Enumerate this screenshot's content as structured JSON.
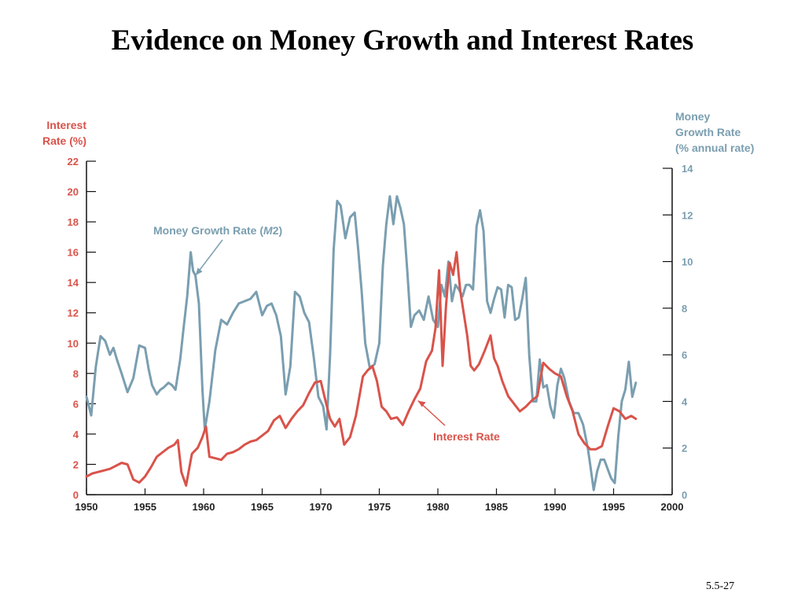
{
  "slide": {
    "title": "Evidence on Money Growth and Interest Rates",
    "number": "5.5-27"
  },
  "chart_data": {
    "type": "line",
    "title": "",
    "xlabel": "",
    "x_ticks": [
      "1950",
      "1955",
      "1960",
      "1965",
      "1970",
      "1975",
      "1980",
      "1985",
      "1990",
      "1995",
      "2000"
    ],
    "xlim": [
      1950,
      2000
    ],
    "left_axis": {
      "label_lines": [
        "Interest",
        "Rate (%)"
      ],
      "ylim": [
        0,
        22
      ],
      "ticks": [
        "0",
        "2",
        "4",
        "6",
        "8",
        "10",
        "12",
        "14",
        "16",
        "18",
        "20",
        "22"
      ],
      "color": "#d9534a"
    },
    "right_axis": {
      "label_lines": [
        "Money",
        "Growth Rate",
        "(% annual rate)"
      ],
      "ylim": [
        0,
        14
      ],
      "ticks": [
        "0",
        "2",
        "4",
        "6",
        "8",
        "10",
        "12",
        "14"
      ],
      "color": "#7a9eb0"
    },
    "grid": false,
    "legend": "inline annotations with arrows",
    "series": [
      {
        "name": "Money Growth Rate (M2)",
        "label_parts": [
          "Money Growth Rate (",
          "M",
          "2)"
        ],
        "axis": "right",
        "color": "#7a9eb0",
        "x": [
          1950.0,
          1950.4,
          1950.8,
          1951.2,
          1951.6,
          1952.0,
          1952.3,
          1952.6,
          1953.0,
          1953.5,
          1954.0,
          1954.5,
          1955.0,
          1955.3,
          1955.6,
          1956.0,
          1956.3,
          1956.6,
          1957.0,
          1957.3,
          1957.6,
          1958.0,
          1958.3,
          1958.6,
          1958.9,
          1959.1,
          1959.3,
          1959.6,
          1959.9,
          1960.1,
          1960.5,
          1961.0,
          1961.5,
          1962.0,
          1962.5,
          1963.0,
          1963.5,
          1964.0,
          1964.5,
          1965.0,
          1965.4,
          1965.8,
          1966.2,
          1966.6,
          1967.0,
          1967.4,
          1967.8,
          1968.2,
          1968.6,
          1969.0,
          1969.4,
          1969.8,
          1970.2,
          1970.5,
          1970.8,
          1971.1,
          1971.4,
          1971.7,
          1972.1,
          1972.5,
          1972.9,
          1973.2,
          1973.5,
          1973.8,
          1974.2,
          1974.6,
          1975.0,
          1975.3,
          1975.6,
          1975.9,
          1976.2,
          1976.5,
          1976.8,
          1977.1,
          1977.4,
          1977.7,
          1978.0,
          1978.4,
          1978.8,
          1979.2,
          1979.6,
          1980.0,
          1980.3,
          1980.6,
          1980.9,
          1981.2,
          1981.5,
          1981.8,
          1982.1,
          1982.4,
          1982.7,
          1983.0,
          1983.3,
          1983.6,
          1983.9,
          1984.2,
          1984.5,
          1984.8,
          1985.1,
          1985.4,
          1985.7,
          1986.0,
          1986.3,
          1986.6,
          1986.9,
          1987.2,
          1987.5,
          1987.8,
          1988.1,
          1988.4,
          1988.7,
          1989.0,
          1989.3,
          1989.6,
          1989.9,
          1990.2,
          1990.5,
          1990.8,
          1991.2,
          1991.6,
          1992.0,
          1992.4,
          1992.8,
          1993.0,
          1993.3,
          1993.6,
          1993.9,
          1994.2,
          1994.5,
          1994.8,
          1995.1,
          1995.4,
          1995.7,
          1996.0,
          1996.3,
          1996.6,
          1996.9
        ],
        "values": [
          4.2,
          3.4,
          5.5,
          6.8,
          6.6,
          6.0,
          6.3,
          5.8,
          5.2,
          4.4,
          5.0,
          6.4,
          6.3,
          5.4,
          4.7,
          4.3,
          4.5,
          4.6,
          4.8,
          4.7,
          4.5,
          5.8,
          7.2,
          8.5,
          10.4,
          9.6,
          9.4,
          8.2,
          4.5,
          2.8,
          4.0,
          6.2,
          7.5,
          7.3,
          7.8,
          8.2,
          8.3,
          8.4,
          8.7,
          7.7,
          8.1,
          8.2,
          7.7,
          6.8,
          4.3,
          5.5,
          8.7,
          8.5,
          7.8,
          7.4,
          5.9,
          4.2,
          3.8,
          2.8,
          6.0,
          10.5,
          12.6,
          12.4,
          11.0,
          11.9,
          12.1,
          10.5,
          8.7,
          6.5,
          5.4,
          5.6,
          6.5,
          9.8,
          11.6,
          12.8,
          11.6,
          12.8,
          12.3,
          11.6,
          9.5,
          7.2,
          7.7,
          7.9,
          7.5,
          8.5,
          7.5,
          7.2,
          9.0,
          8.5,
          10.0,
          8.3,
          9.0,
          8.8,
          8.5,
          9.0,
          9.0,
          8.8,
          11.5,
          12.2,
          11.3,
          8.3,
          7.8,
          8.4,
          8.9,
          8.8,
          7.6,
          9.0,
          8.9,
          7.5,
          7.6,
          8.4,
          9.3,
          6.0,
          4.0,
          4.0,
          5.8,
          4.6,
          4.7,
          3.8,
          3.3,
          4.7,
          5.4,
          5.0,
          4.0,
          3.5,
          3.5,
          3.0,
          2.0,
          1.3,
          0.2,
          1.0,
          1.5,
          1.5,
          1.1,
          0.7,
          0.5,
          2.5,
          4.0,
          4.5,
          5.7,
          4.2,
          4.8
        ],
        "annotation_points_to": [
          1959.3,
          9.4
        ]
      },
      {
        "name": "Interest Rate",
        "axis": "left",
        "color": "#d9534a",
        "x": [
          1950.0,
          1950.5,
          1951.0,
          1951.5,
          1952.0,
          1952.5,
          1953.0,
          1953.5,
          1954.0,
          1954.5,
          1955.0,
          1955.5,
          1956.0,
          1956.5,
          1957.0,
          1957.5,
          1957.8,
          1958.1,
          1958.5,
          1959.0,
          1959.5,
          1959.9,
          1960.2,
          1960.5,
          1961.0,
          1961.5,
          1962.0,
          1962.5,
          1963.0,
          1963.5,
          1964.0,
          1964.5,
          1965.0,
          1965.5,
          1966.0,
          1966.5,
          1967.0,
          1967.5,
          1968.0,
          1968.5,
          1969.0,
          1969.5,
          1970.0,
          1970.4,
          1970.8,
          1971.2,
          1971.6,
          1972.0,
          1972.5,
          1973.0,
          1973.3,
          1973.6,
          1974.0,
          1974.4,
          1974.8,
          1975.2,
          1975.6,
          1976.0,
          1976.5,
          1977.0,
          1977.5,
          1978.0,
          1978.5,
          1979.0,
          1979.5,
          1979.8,
          1980.1,
          1980.4,
          1980.7,
          1981.0,
          1981.3,
          1981.6,
          1981.9,
          1982.2,
          1982.5,
          1982.8,
          1983.1,
          1983.5,
          1984.0,
          1984.5,
          1984.8,
          1985.1,
          1985.5,
          1986.0,
          1986.5,
          1987.0,
          1987.5,
          1988.0,
          1988.5,
          1989.0,
          1989.5,
          1990.0,
          1990.5,
          1991.0,
          1991.5,
          1992.0,
          1992.5,
          1993.0,
          1993.5,
          1994.0,
          1994.5,
          1995.0,
          1995.5,
          1996.0,
          1996.5,
          1996.9
        ],
        "values": [
          1.2,
          1.4,
          1.5,
          1.6,
          1.7,
          1.9,
          2.1,
          2.0,
          1.0,
          0.8,
          1.2,
          1.8,
          2.5,
          2.8,
          3.1,
          3.3,
          3.6,
          1.5,
          0.6,
          2.7,
          3.1,
          3.8,
          4.5,
          2.5,
          2.4,
          2.3,
          2.7,
          2.8,
          3.0,
          3.3,
          3.5,
          3.6,
          3.9,
          4.2,
          4.9,
          5.2,
          4.4,
          5.0,
          5.5,
          5.9,
          6.7,
          7.4,
          7.5,
          6.2,
          5.0,
          4.5,
          5.0,
          3.3,
          3.8,
          5.2,
          6.5,
          7.8,
          8.2,
          8.5,
          7.5,
          5.8,
          5.5,
          5.0,
          5.1,
          4.6,
          5.5,
          6.3,
          7.0,
          8.8,
          9.5,
          11.0,
          14.8,
          8.5,
          12.5,
          15.3,
          14.5,
          16.0,
          13.5,
          12.0,
          10.5,
          8.5,
          8.2,
          8.6,
          9.5,
          10.5,
          9.0,
          8.5,
          7.5,
          6.5,
          6.0,
          5.5,
          5.8,
          6.2,
          6.5,
          8.7,
          8.3,
          8.0,
          7.8,
          6.5,
          5.5,
          4.0,
          3.4,
          3.0,
          3.0,
          3.2,
          4.5,
          5.7,
          5.5,
          5.0,
          5.2,
          5.0
        ],
        "annotation_points_to": [
          1978.3,
          6.2
        ]
      }
    ]
  }
}
